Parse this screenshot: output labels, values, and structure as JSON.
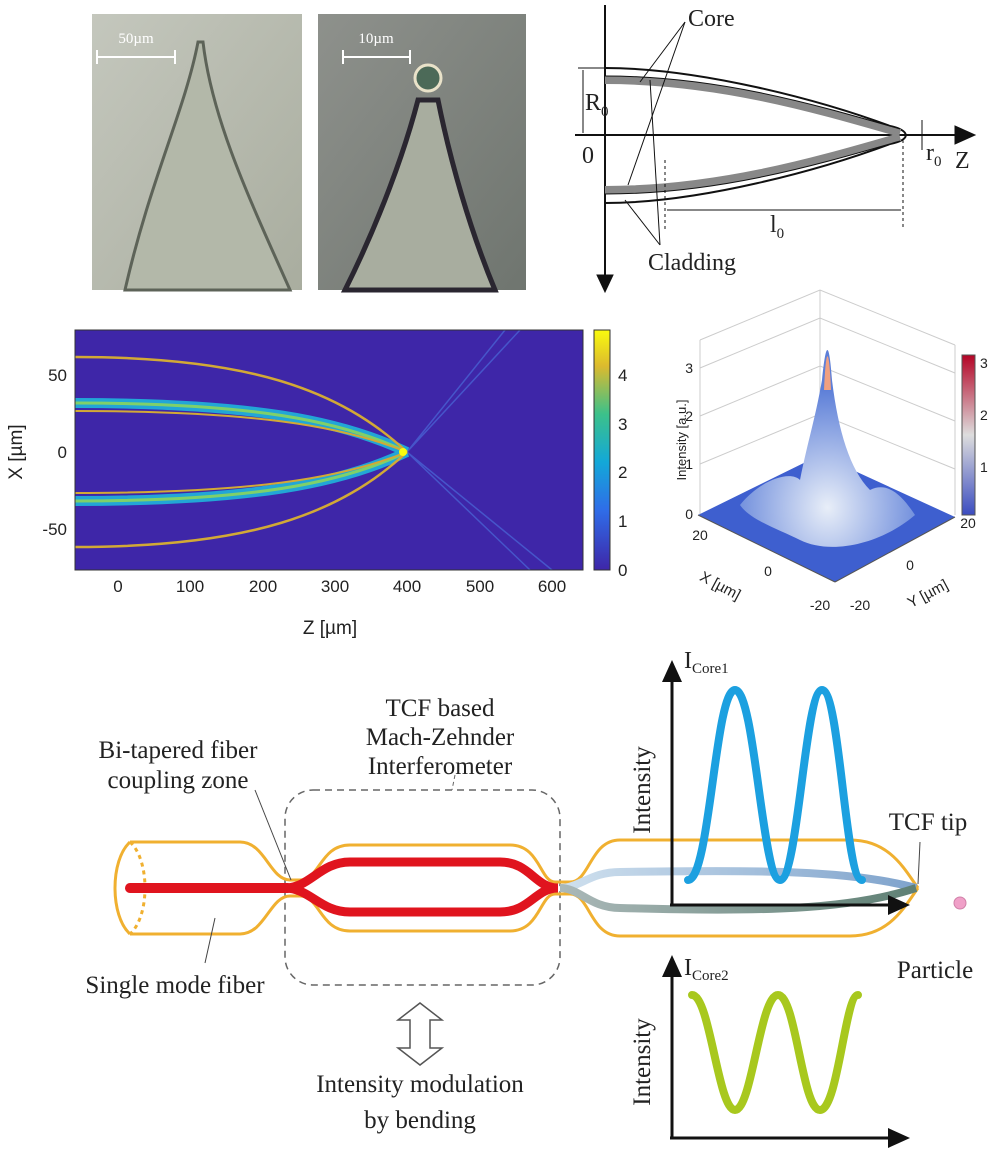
{
  "micrographs": [
    {
      "scale_bar": "50µm"
    },
    {
      "scale_bar": "10µm"
    }
  ],
  "schematic": {
    "core": "Core",
    "cladding": "Cladding",
    "outer_radius": {
      "symbol": "R",
      "subscript": "0"
    },
    "origin": "0",
    "tip_radius": {
      "symbol": "r",
      "subscript": "0"
    },
    "axis": "Z",
    "taper_length": {
      "symbol": "l",
      "subscript": "0"
    }
  },
  "field_map": {
    "xlabel": "Z [µm]",
    "ylabel": "X [µm]",
    "xticks": [
      0,
      100,
      200,
      300,
      400,
      500,
      600
    ],
    "yticks": [
      50,
      0,
      -50
    ],
    "colorbar_ticks": [
      4,
      3,
      2,
      1,
      0
    ]
  },
  "intensity_3d": {
    "zlabel": "Intensity [a.u.]",
    "zticks": [
      3,
      2,
      1,
      0
    ],
    "xlabel": "X [µm]",
    "xticks": [
      20,
      0,
      -20
    ],
    "ylabel": "Y [µm]",
    "yticks": [
      20,
      0,
      -20
    ],
    "colorbar_ticks": [
      3,
      2,
      1
    ]
  },
  "device": {
    "mzi_label": [
      "TCF based",
      "Mach-Zehnder",
      "Interferometer"
    ],
    "coupling_label": [
      "Bi-tapered fiber",
      "coupling zone"
    ],
    "smf_label": "Single mode fiber",
    "modulation_label": [
      "Intensity modulation",
      "by bending"
    ],
    "tip_label": "TCF tip",
    "particle_label": "Particle",
    "core1_plot": {
      "ylabel": "Intensity",
      "title": {
        "symbol": "I",
        "subscript": "Core1"
      }
    },
    "core2_plot": {
      "ylabel": "Intensity",
      "title": {
        "symbol": "I",
        "subscript": "Core2"
      }
    }
  }
}
